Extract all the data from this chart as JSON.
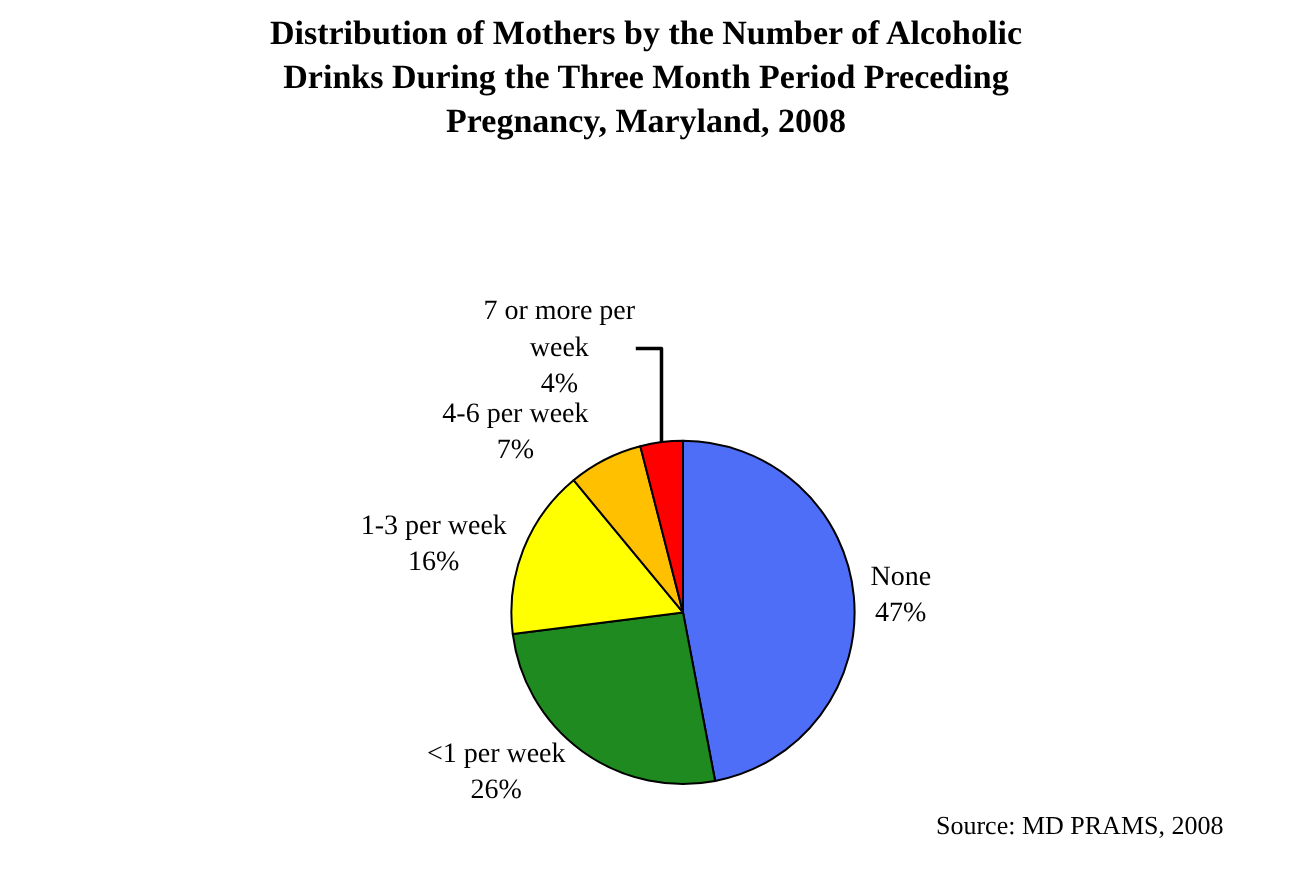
{
  "chart_data": {
    "type": "pie",
    "title": "Distribution of Mothers by the Number of Alcoholic Drinks During the Three Month Period Preceding Pregnancy, Maryland, 2008",
    "categories": [
      "None",
      "<1 per week",
      "1-3 per week",
      "4-6 per week",
      "7 or more per week"
    ],
    "values": [
      47,
      26,
      16,
      7,
      4
    ],
    "colors": [
      "#4f6ef7",
      "#1f8a1f",
      "#ffff00",
      "#ffc000",
      "#ff0000"
    ],
    "value_labels": [
      "47%",
      "26%",
      "16%",
      "7%",
      "4%"
    ],
    "legend": false,
    "annotations": [
      "Source: MD PRAMS, 2008"
    ]
  }
}
